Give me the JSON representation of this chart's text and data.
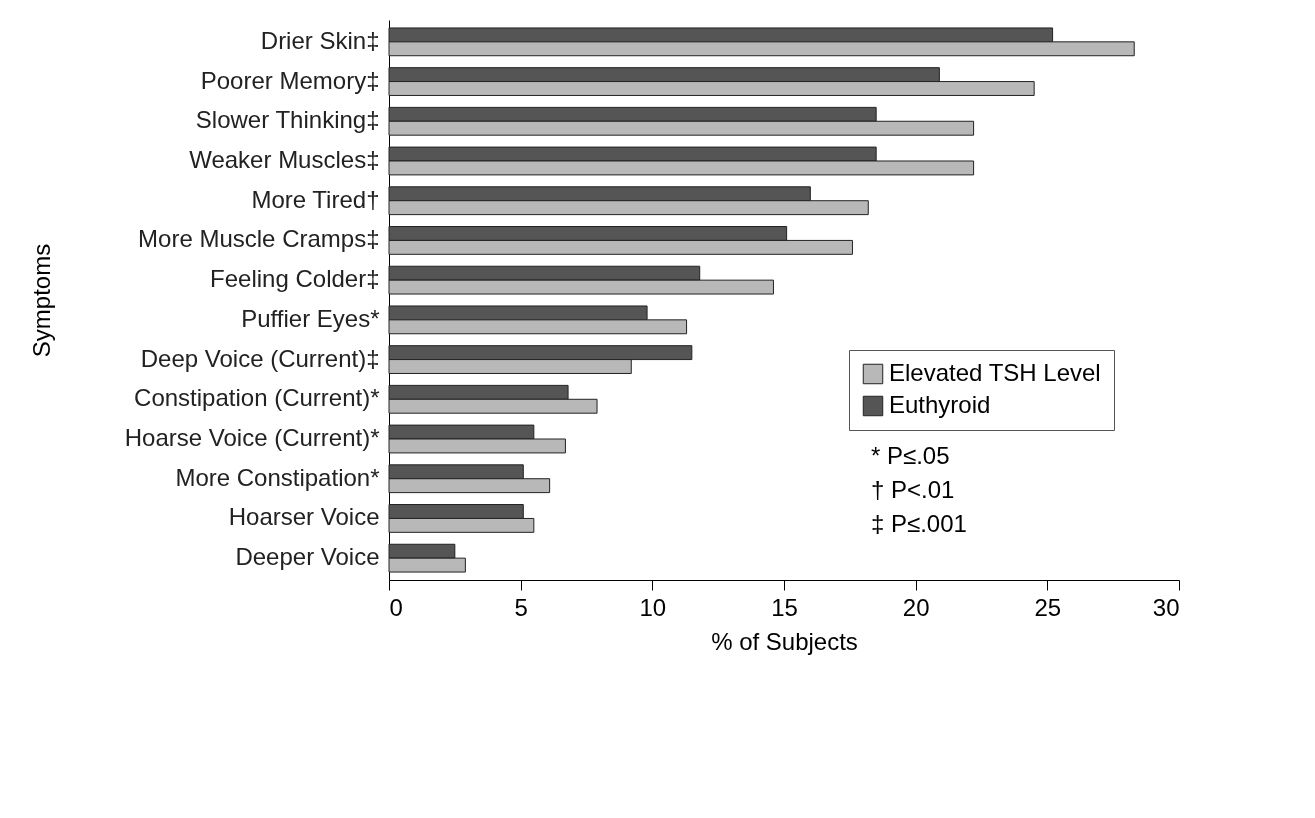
{
  "chart_data": {
    "type": "bar",
    "orientation": "horizontal",
    "xlabel": "% of Subjects",
    "ylabel": "Symptoms",
    "categories": [
      "Drier Skin‡",
      "Poorer Memory‡",
      "Slower Thinking‡",
      "Weaker Muscles‡",
      "More Tired†",
      "More Muscle Cramps‡",
      "Feeling Colder‡",
      "Puffier Eyes*",
      "Deep Voice (Current)‡",
      "Constipation (Current)*",
      "Hoarse Voice (Current)*",
      "More Constipation*",
      "Hoarser Voice",
      "Deeper Voice"
    ],
    "series": [
      {
        "name": "Euthyroid",
        "color": "#555555",
        "values": [
          25.2,
          20.9,
          18.5,
          18.5,
          16.0,
          15.1,
          11.8,
          9.8,
          11.5,
          6.8,
          5.5,
          5.1,
          5.1,
          2.5
        ]
      },
      {
        "name": "Elevated TSH Level",
        "color": "#b8b8b8",
        "values": [
          28.3,
          24.5,
          22.2,
          22.2,
          18.2,
          17.6,
          14.6,
          11.3,
          9.2,
          7.9,
          6.7,
          6.1,
          5.5,
          2.9
        ]
      }
    ],
    "xlim": [
      0,
      30
    ],
    "xticks": [
      0,
      5,
      10,
      15,
      20,
      25,
      30
    ],
    "grid": false,
    "legend": "bottom right",
    "annotations": [
      "* P≤.05",
      "† P<.01",
      "‡ P≤.001"
    ]
  }
}
